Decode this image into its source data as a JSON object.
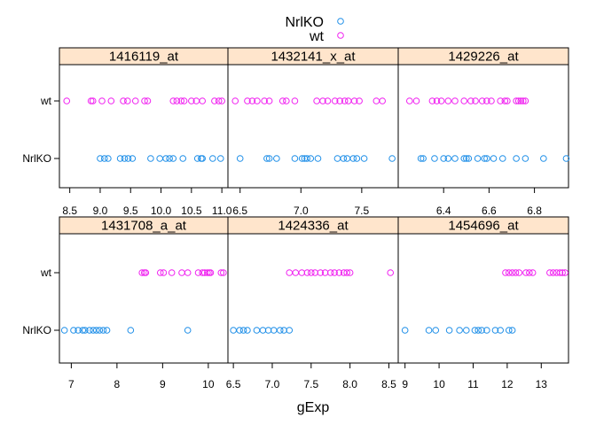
{
  "colors": {
    "NrlKO": "#1f8fe8",
    "wt": "#f020f0",
    "strip_fill": "#ffe5cc",
    "frame": "#000000"
  },
  "legend": {
    "items": [
      {
        "label": "NrlKO",
        "color": "#1f8fe8",
        "symbol": "open-circle"
      },
      {
        "label": "wt",
        "color": "#f020f0",
        "symbol": "open-circle"
      }
    ],
    "placement": "top-center"
  },
  "xlabel": "gExp",
  "chart_data": [
    {
      "type": "scatter",
      "title": "1416119_at",
      "categories": [
        "NrlKO",
        "wt"
      ],
      "xlim": [
        8.33,
        11.1
      ],
      "ticks": [
        8.5,
        9.0,
        9.5,
        10.0,
        10.5,
        11.0
      ],
      "tick_labels": [
        "8.5",
        "9.0",
        "9.5",
        "10.0",
        "10.5",
        "11.0"
      ],
      "series": [
        {
          "name": "wt",
          "values": [
            8.45,
            8.85,
            8.88,
            9.03,
            9.18,
            9.38,
            9.45,
            9.58,
            9.73,
            9.78,
            10.2,
            10.26,
            10.33,
            10.38,
            10.5,
            10.58,
            10.68,
            10.88,
            10.95,
            11.0
          ]
        },
        {
          "name": "NrlKO",
          "values": [
            9.0,
            9.07,
            9.13,
            9.33,
            9.4,
            9.46,
            9.53,
            9.83,
            9.98,
            10.08,
            10.14,
            10.2,
            10.36,
            10.6,
            10.66,
            10.68,
            10.85,
            10.98
          ]
        }
      ]
    },
    {
      "type": "scatter",
      "title": "1432141_x_at",
      "categories": [
        "NrlKO",
        "wt"
      ],
      "xlim": [
        6.4,
        7.8
      ],
      "ticks": [
        6.5,
        7.0,
        7.5
      ],
      "tick_labels": [
        "6.5",
        "7.0",
        "7.5"
      ],
      "series": [
        {
          "name": "wt",
          "values": [
            6.46,
            6.56,
            6.6,
            6.64,
            6.7,
            6.74,
            6.85,
            6.88,
            6.95,
            7.13,
            7.18,
            7.22,
            7.28,
            7.32,
            7.36,
            7.39,
            7.44,
            7.48,
            7.62,
            7.67
          ]
        },
        {
          "name": "NrlKO",
          "values": [
            6.5,
            6.72,
            6.74,
            6.8,
            6.95,
            7.01,
            7.03,
            7.05,
            7.08,
            7.14,
            7.3,
            7.35,
            7.38,
            7.43,
            7.46,
            7.52,
            7.75
          ]
        }
      ]
    },
    {
      "type": "scatter",
      "title": "1429226_at",
      "categories": [
        "NrlKO",
        "wt"
      ],
      "xlim": [
        6.2,
        6.95
      ],
      "ticks": [
        6.4,
        6.6,
        6.8
      ],
      "tick_labels": [
        "6.4",
        "6.6",
        "6.8"
      ],
      "series": [
        {
          "name": "wt",
          "values": [
            6.25,
            6.28,
            6.35,
            6.37,
            6.39,
            6.42,
            6.45,
            6.49,
            6.52,
            6.54,
            6.57,
            6.59,
            6.61,
            6.65,
            6.67,
            6.68,
            6.72,
            6.73,
            6.74,
            6.75,
            6.76
          ]
        },
        {
          "name": "NrlKO",
          "values": [
            6.3,
            6.31,
            6.36,
            6.4,
            6.42,
            6.45,
            6.49,
            6.5,
            6.51,
            6.55,
            6.58,
            6.59,
            6.62,
            6.66,
            6.72,
            6.76,
            6.84,
            6.94
          ]
        }
      ]
    },
    {
      "type": "scatter",
      "title": "1431708_a_at",
      "categories": [
        "NrlKO",
        "wt"
      ],
      "xlim": [
        6.74,
        10.43
      ],
      "ticks": [
        7,
        8,
        9,
        10
      ],
      "tick_labels": [
        "7",
        "8",
        "9",
        "10"
      ],
      "series": [
        {
          "name": "wt",
          "values": [
            8.55,
            8.6,
            8.63,
            8.95,
            9.02,
            9.2,
            9.42,
            9.55,
            9.78,
            9.87,
            9.92,
            9.98,
            10.02,
            10.05,
            10.28,
            10.33
          ]
        },
        {
          "name": "NrlKO",
          "values": [
            6.85,
            7.05,
            7.15,
            7.25,
            7.3,
            7.4,
            7.48,
            7.55,
            7.62,
            7.7,
            7.78,
            8.3,
            9.55
          ]
        }
      ]
    },
    {
      "type": "scatter",
      "title": "1424336_at",
      "categories": [
        "NrlKO",
        "wt"
      ],
      "xlim": [
        6.43,
        8.62
      ],
      "ticks": [
        6.5,
        7.0,
        7.5,
        8.0,
        8.5
      ],
      "tick_labels": [
        "6.5",
        "7.0",
        "7.5",
        "8.0",
        "8.5"
      ],
      "series": [
        {
          "name": "wt",
          "values": [
            7.22,
            7.3,
            7.38,
            7.45,
            7.5,
            7.55,
            7.62,
            7.68,
            7.75,
            7.8,
            7.86,
            7.92,
            7.96,
            8.0,
            8.52
          ]
        },
        {
          "name": "NrlKO",
          "values": [
            6.5,
            6.58,
            6.63,
            6.68,
            6.8,
            6.88,
            6.95,
            7.02,
            7.1,
            7.15,
            7.22
          ]
        }
      ]
    },
    {
      "type": "scatter",
      "title": "1454696_at",
      "categories": [
        "NrlKO",
        "wt"
      ],
      "xlim": [
        8.8,
        13.8
      ],
      "ticks": [
        9,
        10,
        11,
        12,
        13
      ],
      "tick_labels": [
        "9",
        "10",
        "11",
        "12",
        "13"
      ],
      "series": [
        {
          "name": "wt",
          "values": [
            11.95,
            12.05,
            12.15,
            12.25,
            12.35,
            12.55,
            12.65,
            12.75,
            13.25,
            13.35,
            13.45,
            13.55,
            13.62,
            13.7
          ]
        },
        {
          "name": "NrlKO",
          "values": [
            9.0,
            9.7,
            9.9,
            10.3,
            10.6,
            10.8,
            11.05,
            11.15,
            11.25,
            11.4,
            11.65,
            11.8,
            12.05,
            12.15
          ]
        }
      ]
    }
  ]
}
